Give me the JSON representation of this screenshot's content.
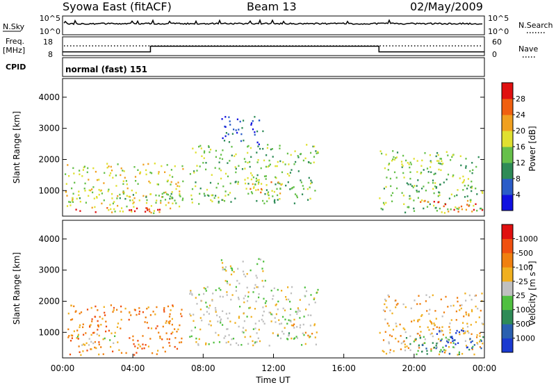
{
  "header": {
    "station": "Syowa East (fitACF)",
    "beam": "Beam 13",
    "date": "02/May/2009"
  },
  "top_panels": {
    "nsky_label": "N.Sky",
    "nsearch_label": "N.Search",
    "nsky_ticks": [
      "10^5",
      "10^0"
    ],
    "nsearch_ticks": [
      "10^5",
      "10^0"
    ],
    "freq_label_1": "Freq.",
    "freq_label_2": "[MHz]",
    "freq_ticks": [
      "18",
      "8"
    ],
    "nave_label": "Nave",
    "nave_ticks": [
      "60",
      "0"
    ],
    "cpid_label": "CPID",
    "cpid_value": "normal (fast) 151",
    "freq_steps": [
      {
        "t": 0,
        "v": 10
      },
      {
        "t": 5,
        "v": 13
      },
      {
        "t": 18,
        "v": 10
      },
      {
        "t": 24,
        "v": 10
      }
    ]
  },
  "chart_data": [
    {
      "type": "heatmap",
      "title": "",
      "ylabel": "Slant Range [km]",
      "xlim": [
        0,
        24
      ],
      "ylim": [
        180,
        4600
      ],
      "yticks": [
        "1000",
        "2000",
        "3000",
        "4000"
      ],
      "colorbar": {
        "label": "Power [dB]",
        "ticks": [
          "4",
          "8",
          "12",
          "16",
          "20",
          "24",
          "28"
        ],
        "colors": [
          "#1010e0",
          "#2a5cc8",
          "#2e8b57",
          "#66c04a",
          "#e0e030",
          "#f0a020",
          "#f06010",
          "#e01010"
        ]
      },
      "regions": [
        {
          "t0": 0.1,
          "t1": 6.9,
          "r0": 300,
          "r1": 1900,
          "level": 4
        },
        {
          "t0": 0.6,
          "t1": 5.5,
          "r0": 300,
          "r1": 500,
          "level": 7
        },
        {
          "t0": 0.5,
          "t1": 6.5,
          "r0": 700,
          "r1": 1000,
          "level": 3
        },
        {
          "t0": 7.2,
          "t1": 14.5,
          "r0": 600,
          "r1": 2500,
          "level": 3
        },
        {
          "t0": 9.0,
          "t1": 11.5,
          "r0": 2500,
          "r1": 3400,
          "level": 1
        },
        {
          "t0": 10.5,
          "t1": 12.5,
          "r0": 900,
          "r1": 1400,
          "level": 5
        },
        {
          "t0": 18.0,
          "t1": 23.9,
          "r0": 300,
          "r1": 2300,
          "level": 3
        },
        {
          "t0": 20.0,
          "t1": 23.9,
          "r0": 350,
          "r1": 700,
          "level": 6
        }
      ]
    },
    {
      "type": "heatmap",
      "title": "",
      "ylabel": "Slant Range [km]",
      "xlabel": "Time UT",
      "xlim": [
        0,
        24
      ],
      "ylim": [
        180,
        4600
      ],
      "yticks": [
        "1000",
        "2000",
        "3000",
        "4000"
      ],
      "xticks": [
        "00:00",
        "04:00",
        "08:00",
        "12:00",
        "16:00",
        "20:00",
        "00:00"
      ],
      "colorbar": {
        "label": "Velocity [m s⁻¹]",
        "ticks": [
          "1000",
          "500",
          "100",
          "25",
          "-25",
          "-100",
          "-500",
          "-1000"
        ],
        "colors": [
          "#1a3ad0",
          "#2a60b0",
          "#2e8b57",
          "#50c040",
          "#c0c0c0",
          "#f0b020",
          "#f08010",
          "#f05010",
          "#e01010"
        ]
      },
      "regions": [
        {
          "t0": 0.1,
          "t1": 6.9,
          "r0": 300,
          "r1": 1900,
          "level": 6
        },
        {
          "t0": 0.5,
          "t1": 3.0,
          "r0": 600,
          "r1": 1000,
          "level": 4
        },
        {
          "t0": 7.2,
          "t1": 14.5,
          "r0": 600,
          "r1": 2500,
          "level": 4
        },
        {
          "t0": 9.0,
          "t1": 11.5,
          "r0": 2500,
          "r1": 3400,
          "level": 4
        },
        {
          "t0": 12.0,
          "t1": 13.0,
          "r0": 800,
          "r1": 1500,
          "level": 3
        },
        {
          "t0": 13.0,
          "t1": 14.5,
          "r0": 800,
          "r1": 1300,
          "level": 5
        },
        {
          "t0": 18.0,
          "t1": 23.9,
          "r0": 300,
          "r1": 2300,
          "level": 5
        },
        {
          "t0": 19.5,
          "t1": 23.9,
          "r0": 300,
          "r1": 900,
          "level": 2
        },
        {
          "t0": 21.0,
          "t1": 23.5,
          "r0": 500,
          "r1": 1100,
          "level": 0
        }
      ]
    }
  ]
}
